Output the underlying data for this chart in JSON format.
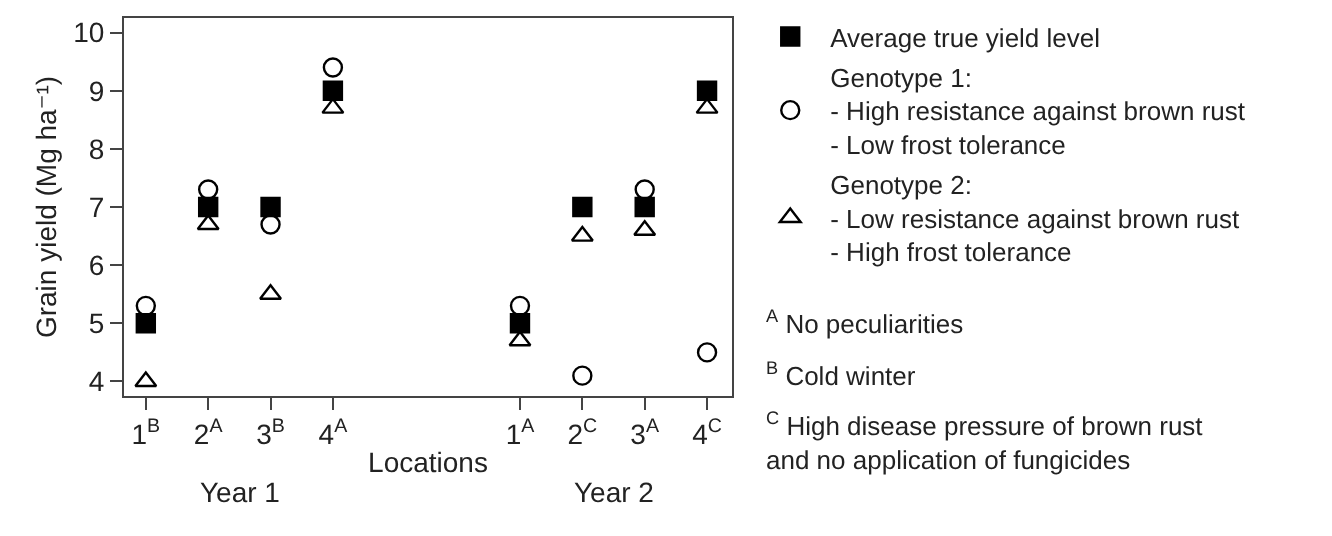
{
  "chart_data": {
    "type": "scatter",
    "xlabel": "Locations",
    "ylabel": "Grain yield (Mg ha⁻¹)",
    "categories": [
      "1$^{B}$",
      "2$^{A}$",
      "3$^{B}$",
      "4$^{A}$",
      null,
      null,
      "1$^{A}$",
      "2$^{C}$",
      "3$^{A}$",
      "4$^{C}$"
    ],
    "ylim": [
      3.75,
      10.25
    ],
    "yticks": [
      4,
      5,
      6,
      7,
      8,
      9,
      10
    ],
    "series": [
      {
        "name": "Average true yield level",
        "color": "#000000",
        "marker": "square",
        "values": [
          5,
          7,
          7,
          9,
          null,
          null,
          5,
          7,
          7,
          9
        ]
      },
      {
        "name": "Genotype 1:\n- High resistance against brown rust\n- Low frost tolerance",
        "color": "#000000",
        "marker": "circle",
        "values": [
          5.3,
          7.3,
          6.7,
          9.4,
          null,
          null,
          5.3,
          4.1,
          7.3,
          4.5
        ]
      },
      {
        "name": "Genotype 2:\n- Low resistance against brown rust\n- High frost tolerance",
        "color": "#000000",
        "marker": "triangle",
        "values": [
          4.0,
          6.7,
          5.5,
          8.7,
          null,
          null,
          4.7,
          6.5,
          6.6,
          8.7
        ]
      }
    ],
    "annotations": [
      "Year 1",
      "Year 2",
      "$^{A}$ No peculiarities",
      "$^{B}$ Cold winter",
      "$^{C}$ High disease pressure of brown rust\nand no application of fungicides"
    ],
    "grid": false,
    "legend": "right"
  }
}
